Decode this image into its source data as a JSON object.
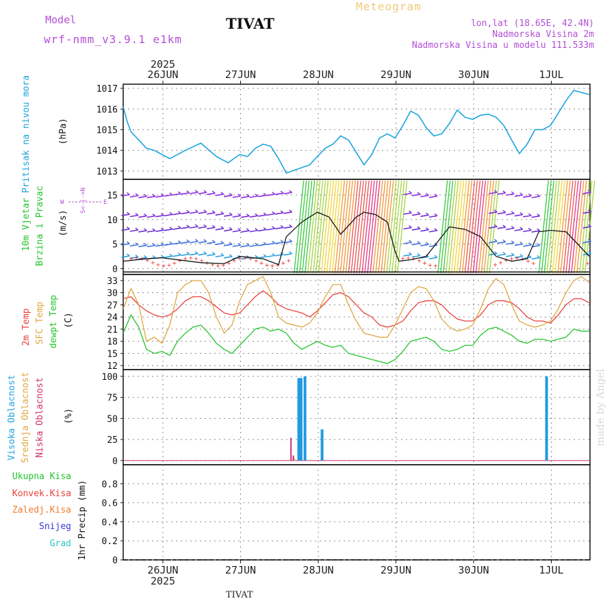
{
  "header": {
    "model_label": "Model",
    "model_version": "wrf-nmm_v3.9.1 e1km",
    "station": "TIVAT",
    "title": "Meteogram",
    "lonlat": "lon,lat (18.65E, 42.4N)",
    "altitude": "Nadmorska Visina 2m",
    "model_altitude": "Nadmorska Visina u modelu 111.533m"
  },
  "footer": {
    "station": "TIVAT",
    "made_by": "made by Angel"
  },
  "time_axis": {
    "year": "2025",
    "days": [
      "26JUN",
      "27JUN",
      "28JUN",
      "29JUN",
      "30JUN",
      "1JUL"
    ]
  },
  "panel_labels": {
    "pressure": {
      "title": "Pritisak na nivou mora",
      "unit": "(hPa)"
    },
    "wind": {
      "title1": "10m Vjetar",
      "title2": "Brzina i Pravac",
      "unit": "(m/s)",
      "compass_w": "W",
      "compass_e": "E",
      "compass_ns": "S<-|->N"
    },
    "temp": {
      "t2m": "2m Temp",
      "sfc": "SFC Temp",
      "dew": "dewpt Temp",
      "unit": "(C)"
    },
    "cloud": {
      "high": "Visoka Oblacnost",
      "mid": "Srednja Oblacnost",
      "low": "Niska Oblacnost",
      "unit": "(%)"
    },
    "precip": {
      "total": "Ukupna Kisa",
      "conv": "Konvek.Kisa",
      "frozen": "Zaledj.Kisa",
      "snow": "Snijeg",
      "graupel": "Grad",
      "unit": "1hr Precip (mm)"
    }
  },
  "colors": {
    "pressure": "#1ba3de",
    "t2m": "#e8403a",
    "sfc": "#e0a640",
    "dew": "#22c42a",
    "cloud_high": "#1f9ae0",
    "cloud_mid": "#e0a640",
    "cloud_low": "#d0306a",
    "precip_total": "#22c42a",
    "precip_conv": "#e8403a",
    "precip_frozen": "#ef7a30",
    "precip_snow": "#3a3ad8",
    "precip_graupel": "#2cc4c4",
    "wind_speed": "#111111"
  },
  "chart_data": [
    {
      "type": "line",
      "name": "pressure",
      "ylim": [
        1012.6,
        1017.2
      ],
      "yticks": [
        1013,
        1014,
        1015,
        1016,
        1017
      ],
      "xlim": [
        0,
        6.0
      ],
      "x": [
        0,
        0.05,
        0.1,
        0.2,
        0.3,
        0.4,
        0.5,
        0.6,
        0.8,
        1.0,
        1.2,
        1.35,
        1.5,
        1.6,
        1.7,
        1.8,
        1.9,
        2.0,
        2.1,
        2.25,
        2.4,
        2.5,
        2.6,
        2.7,
        2.8,
        2.9,
        3.0,
        3.1,
        3.2,
        3.3,
        3.4,
        3.5,
        3.6,
        3.7,
        3.8,
        3.9,
        4.0,
        4.1,
        4.2,
        4.3,
        4.4,
        4.5,
        4.6,
        4.7,
        4.8,
        4.9,
        5.0,
        5.1,
        5.2,
        5.3,
        5.4,
        5.5,
        5.6,
        5.7,
        5.8,
        5.9,
        6.0
      ],
      "y": [
        1016.1,
        1015.4,
        1014.9,
        1014.5,
        1014.1,
        1014.0,
        1013.8,
        1013.6,
        1014.0,
        1014.35,
        1013.7,
        1013.4,
        1013.8,
        1013.7,
        1014.1,
        1014.3,
        1014.2,
        1013.6,
        1012.9,
        1013.1,
        1013.3,
        1013.7,
        1014.1,
        1014.3,
        1014.7,
        1014.5,
        1013.9,
        1013.3,
        1013.8,
        1014.6,
        1014.8,
        1014.6,
        1015.2,
        1015.9,
        1015.7,
        1015.1,
        1014.7,
        1014.8,
        1015.3,
        1015.95,
        1015.6,
        1015.5,
        1015.7,
        1015.75,
        1015.6,
        1015.2,
        1014.5,
        1013.85,
        1014.3,
        1015.0,
        1015.0,
        1015.2,
        1015.8,
        1016.4,
        1016.9,
        1016.8,
        1016.7
      ]
    },
    {
      "type": "line",
      "name": "wind_speed",
      "ylim": [
        -1.2,
        18.2
      ],
      "yticks": [
        0,
        5,
        10,
        15
      ],
      "xlim": [
        0,
        6.0
      ],
      "x": [
        0,
        0.3,
        0.5,
        0.8,
        1.0,
        1.3,
        1.5,
        1.8,
        2.0,
        2.1,
        2.3,
        2.5,
        2.65,
        2.8,
        3.0,
        3.1,
        3.25,
        3.4,
        3.5,
        3.55,
        3.7,
        3.9,
        4.05,
        4.2,
        4.4,
        4.6,
        4.8,
        5.0,
        5.2,
        5.35,
        5.5,
        5.7,
        6.0
      ],
      "y": [
        1.5,
        2.0,
        2.2,
        1.6,
        1.2,
        1.0,
        2.5,
        2.0,
        0.8,
        6.5,
        9.5,
        11.5,
        10.5,
        7.0,
        10.5,
        11.5,
        11.0,
        9.5,
        3.5,
        1.5,
        1.8,
        2.5,
        5.5,
        8.5,
        8.0,
        6.5,
        2.5,
        1.5,
        2.0,
        7.5,
        7.8,
        7.5,
        2.5
      ]
    },
    {
      "type": "line",
      "name": "temperatures",
      "ylim": [
        11,
        34.5
      ],
      "yticks": [
        12,
        15,
        18,
        21,
        24,
        27,
        30,
        33
      ],
      "xlim": [
        0,
        6.0
      ],
      "x": [
        0,
        0.1,
        0.2,
        0.3,
        0.4,
        0.5,
        0.6,
        0.7,
        0.8,
        0.9,
        1.0,
        1.1,
        1.2,
        1.3,
        1.4,
        1.5,
        1.6,
        1.7,
        1.8,
        1.9,
        2.0,
        2.1,
        2.2,
        2.3,
        2.4,
        2.5,
        2.6,
        2.7,
        2.8,
        2.9,
        3.0,
        3.1,
        3.2,
        3.3,
        3.4,
        3.5,
        3.6,
        3.7,
        3.8,
        3.9,
        4.0,
        4.1,
        4.2,
        4.3,
        4.4,
        4.5,
        4.6,
        4.7,
        4.8,
        4.9,
        5.0,
        5.1,
        5.2,
        5.3,
        5.4,
        5.5,
        5.6,
        5.7,
        5.8,
        5.9,
        6.0
      ],
      "series": [
        {
          "name": "2m Temp",
          "values": [
            28.5,
            29,
            27,
            25.5,
            24.5,
            24,
            24.5,
            26,
            28,
            29,
            29,
            28,
            26.5,
            25,
            24.5,
            25,
            27,
            29,
            30.5,
            29,
            27,
            26,
            25.5,
            25,
            24,
            25.5,
            27.5,
            29.5,
            30,
            29,
            27,
            25,
            24,
            22,
            21.5,
            22,
            23,
            25.5,
            27.5,
            28,
            28,
            27,
            25,
            23.5,
            23,
            23,
            24.5,
            27,
            28,
            28,
            27.5,
            26,
            24,
            23,
            23,
            22.5,
            24.5,
            27,
            28.5,
            28.5,
            27.5
          ]
        },
        {
          "name": "SFC Temp",
          "values": [
            26,
            31,
            27,
            18,
            19,
            17.5,
            22,
            30,
            32,
            33,
            33,
            30,
            24,
            20,
            22,
            28,
            32,
            33,
            34,
            30,
            24,
            22.5,
            22,
            21.5,
            22.5,
            25,
            29,
            32,
            32,
            27,
            23,
            20,
            19.5,
            19,
            19,
            22,
            26,
            30,
            31.5,
            31,
            28,
            23.5,
            21.5,
            20.5,
            21,
            22,
            26,
            31,
            33.5,
            32,
            27,
            23,
            22,
            21.5,
            22,
            23,
            26,
            30,
            33,
            34,
            32.5
          ]
        },
        {
          "name": "dewpt Temp",
          "values": [
            20,
            24.5,
            21.5,
            16,
            15,
            15.5,
            14.5,
            18,
            20,
            21.5,
            22,
            20,
            17.5,
            16,
            15,
            17,
            19,
            21,
            21.5,
            20.5,
            21,
            20,
            17.5,
            16,
            17,
            18,
            17,
            16.5,
            17,
            15,
            14.5,
            14,
            13.5,
            13,
            12.5,
            13.5,
            15.5,
            18,
            18.5,
            19,
            18,
            16,
            15.5,
            16,
            17,
            17,
            19.5,
            21,
            21.5,
            20.5,
            19.5,
            18,
            17.5,
            18.5,
            18.5,
            18,
            18.5,
            19,
            21,
            20.5,
            20.5
          ]
        }
      ]
    },
    {
      "type": "bar",
      "name": "cloudiness",
      "ylim": [
        -5,
        108
      ],
      "yticks": [
        0,
        25,
        50,
        75,
        100
      ],
      "xlim": [
        0,
        6.0
      ],
      "series": [
        {
          "name": "Visoka Oblacnost",
          "x": [
            2.26,
            2.29,
            2.34,
            2.56,
            5.45
          ],
          "values": [
            98,
            98,
            100,
            37,
            100
          ]
        },
        {
          "name": "Srednja Oblacnost",
          "x": [
            2.2
          ],
          "values": [
            3
          ]
        },
        {
          "name": "Niska Oblacnost",
          "x": [
            2.16,
            2.19
          ],
          "values": [
            27,
            6
          ]
        }
      ]
    },
    {
      "type": "bar",
      "name": "precipitation",
      "ylim": [
        0,
        1.0
      ],
      "yticks": [
        0,
        0.2,
        0.4,
        0.6,
        0.8
      ],
      "xlim": [
        0,
        6.0
      ],
      "series": [
        {
          "name": "Ukupna Kisa",
          "values": []
        },
        {
          "name": "Konvek.Kisa",
          "values": []
        },
        {
          "name": "Zaledj.Kisa",
          "values": []
        },
        {
          "name": "Snijeg",
          "values": []
        },
        {
          "name": "Grad",
          "values": []
        }
      ]
    }
  ]
}
